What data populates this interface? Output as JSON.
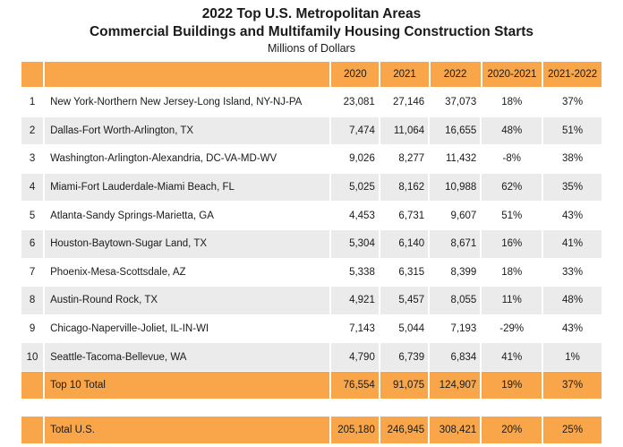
{
  "title": {
    "line1": "2022 Top U.S. Metropolitan Areas",
    "line2": "Commercial Buildings and Multifamily Housing Construction Starts",
    "line3": "Millions of Dollars"
  },
  "table": {
    "headers": [
      "",
      "",
      "2020",
      "2021",
      "2022",
      "2020-2021",
      "2021-2022"
    ],
    "rows": [
      {
        "rank": "1",
        "metro": "New York-Northern New Jersey-Long Island, NY-NJ-PA",
        "v2020": "23,081",
        "v2021": "27,146",
        "v2022": "37,073",
        "p2021": "18%",
        "p2022": "37%"
      },
      {
        "rank": "2",
        "metro": "Dallas-Fort Worth-Arlington, TX",
        "v2020": "7,474",
        "v2021": "11,064",
        "v2022": "16,655",
        "p2021": "48%",
        "p2022": "51%"
      },
      {
        "rank": "3",
        "metro": "Washington-Arlington-Alexandria, DC-VA-MD-WV",
        "v2020": "9,026",
        "v2021": "8,277",
        "v2022": "11,432",
        "p2021": "-8%",
        "p2022": "38%"
      },
      {
        "rank": "4",
        "metro": "Miami-Fort Lauderdale-Miami Beach, FL",
        "v2020": "5,025",
        "v2021": "8,162",
        "v2022": "10,988",
        "p2021": "62%",
        "p2022": "35%"
      },
      {
        "rank": "5",
        "metro": "Atlanta-Sandy Springs-Marietta, GA",
        "v2020": "4,453",
        "v2021": "6,731",
        "v2022": "9,607",
        "p2021": "51%",
        "p2022": "43%"
      },
      {
        "rank": "6",
        "metro": "Houston-Baytown-Sugar Land, TX",
        "v2020": "5,304",
        "v2021": "6,140",
        "v2022": "8,671",
        "p2021": "16%",
        "p2022": "41%"
      },
      {
        "rank": "7",
        "metro": "Phoenix-Mesa-Scottsdale, AZ",
        "v2020": "5,338",
        "v2021": "6,315",
        "v2022": "8,399",
        "p2021": "18%",
        "p2022": "33%"
      },
      {
        "rank": "8",
        "metro": "Austin-Round Rock, TX",
        "v2020": "4,921",
        "v2021": "5,457",
        "v2022": "8,055",
        "p2021": "11%",
        "p2022": "48%"
      },
      {
        "rank": "9",
        "metro": "Chicago-Naperville-Joliet, IL-IN-WI",
        "v2020": "7,143",
        "v2021": "5,044",
        "v2022": "7,193",
        "p2021": "-29%",
        "p2022": "43%"
      },
      {
        "rank": "10",
        "metro": "Seattle-Tacoma-Bellevue, WA",
        "v2020": "4,790",
        "v2021": "6,739",
        "v2022": "6,834",
        "p2021": "41%",
        "p2022": "1%"
      }
    ],
    "top10": {
      "label": "Top 10 Total",
      "v2020": "76,554",
      "v2021": "91,075",
      "v2022": "124,907",
      "p2021": "19%",
      "p2022": "37%"
    },
    "us": {
      "label": "Total U.S.",
      "v2020": "205,180",
      "v2021": "246,945",
      "v2022": "308,421",
      "p2021": "20%",
      "p2022": "25%"
    }
  },
  "colors": {
    "header": "#f8a649",
    "alt_row": "#ebebeb"
  }
}
